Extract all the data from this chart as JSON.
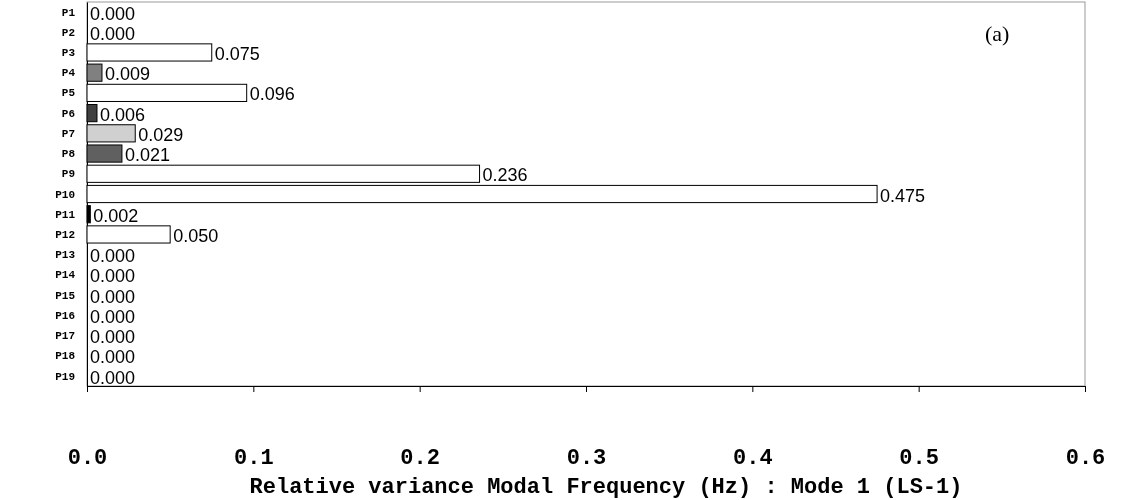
{
  "chart_data": {
    "type": "bar",
    "orientation": "horizontal",
    "xlabel": "Relative variance Modal Frequency (Hz) : Mode 1 (LS-1)",
    "categories": [
      "P1",
      "P2",
      "P3",
      "P4",
      "P5",
      "P6",
      "P7",
      "P8",
      "P9",
      "P10",
      "P11",
      "P12",
      "P13",
      "P14",
      "P15",
      "P16",
      "P17",
      "P18",
      "P19"
    ],
    "values": [
      0,
      0,
      0.075,
      0.009,
      0.096,
      0.006,
      0.029,
      0.021,
      0.236,
      0.475,
      0.002,
      0.05,
      0,
      0,
      0,
      0,
      0,
      0,
      0
    ],
    "value_labels": [
      "0.000",
      "0.000",
      "0.075",
      "0.009",
      "0.096",
      "0.006",
      "0.029",
      "0.021",
      "0.236",
      "0.475",
      "0.002",
      "0.050",
      "0.000",
      "0.000",
      "0.000",
      "0.000",
      "0.000",
      "0.000",
      "0.000"
    ],
    "colors": [
      "#ffffff",
      "#ffffff",
      "#ffffff",
      "#808080",
      "#ffffff",
      "#404040",
      "#d0d0d0",
      "#606060",
      "#ffffff",
      "#ffffff",
      "#000000",
      "#ffffff",
      "#ffffff",
      "#ffffff",
      "#ffffff",
      "#ffffff",
      "#ffffff",
      "#ffffff",
      "#ffffff"
    ],
    "xlim": [
      0,
      0.6
    ],
    "xticks": [
      {
        "value": 0,
        "label": "0.0"
      },
      {
        "value": 0.1,
        "label": "0.1"
      },
      {
        "value": 0.2,
        "label": "0.2"
      },
      {
        "value": 0.3,
        "label": "0.3"
      },
      {
        "value": 0.4,
        "label": "0.4"
      },
      {
        "value": 0.5,
        "label": "0.5"
      },
      {
        "value": 0.6,
        "label": "0.6"
      }
    ],
    "annotations": [
      "(a)"
    ],
    "grid": false
  }
}
